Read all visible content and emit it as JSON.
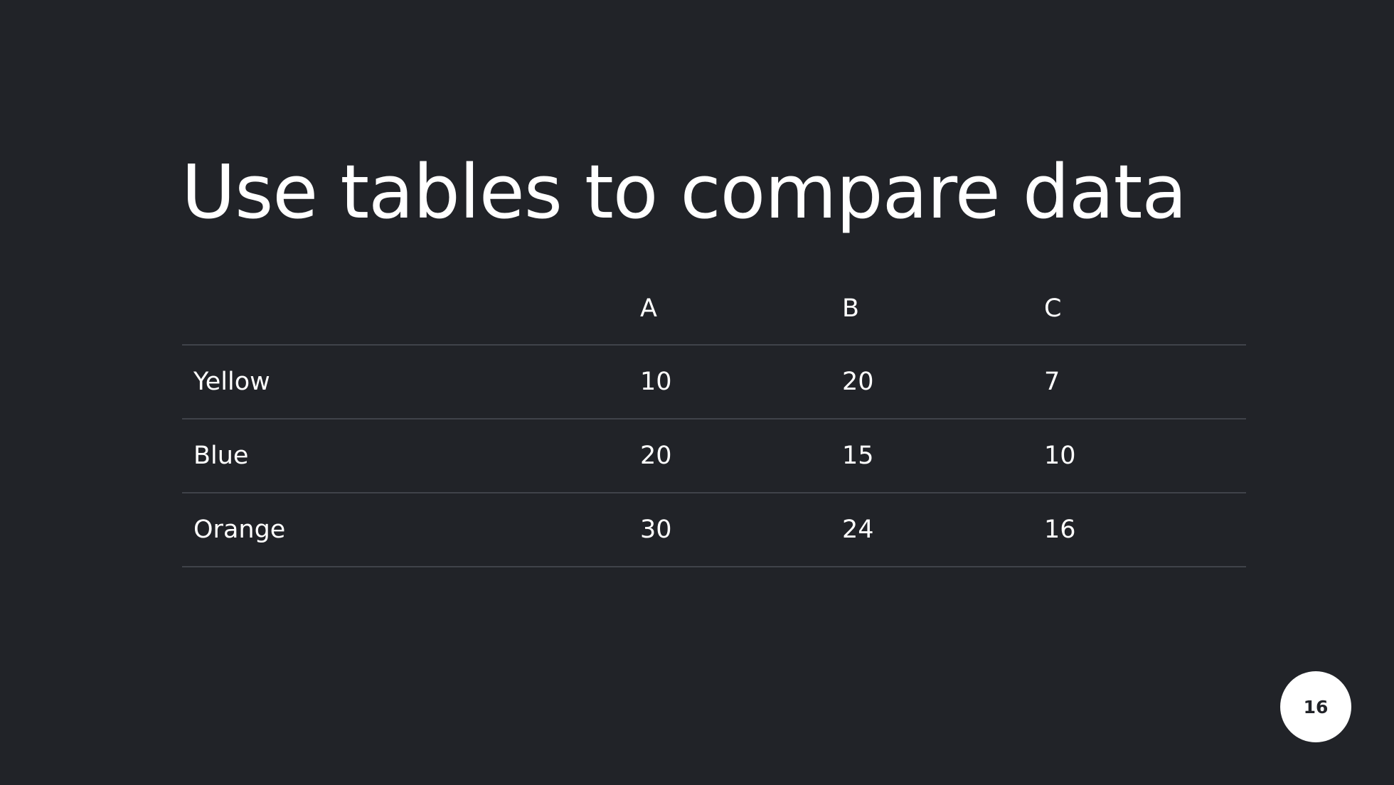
{
  "slide": {
    "title": "Use tables to compare data",
    "page_number": "16",
    "background_color": "#212328",
    "text_color": "#ffffff"
  },
  "table": {
    "columns": [
      "",
      "A",
      "B",
      "C"
    ],
    "rows": [
      {
        "label": "Yellow",
        "values": [
          "10",
          "20",
          "7"
        ]
      },
      {
        "label": "Blue",
        "values": [
          "20",
          "15",
          "10"
        ]
      },
      {
        "label": "Orange",
        "values": [
          "30",
          "24",
          "16"
        ]
      }
    ]
  }
}
